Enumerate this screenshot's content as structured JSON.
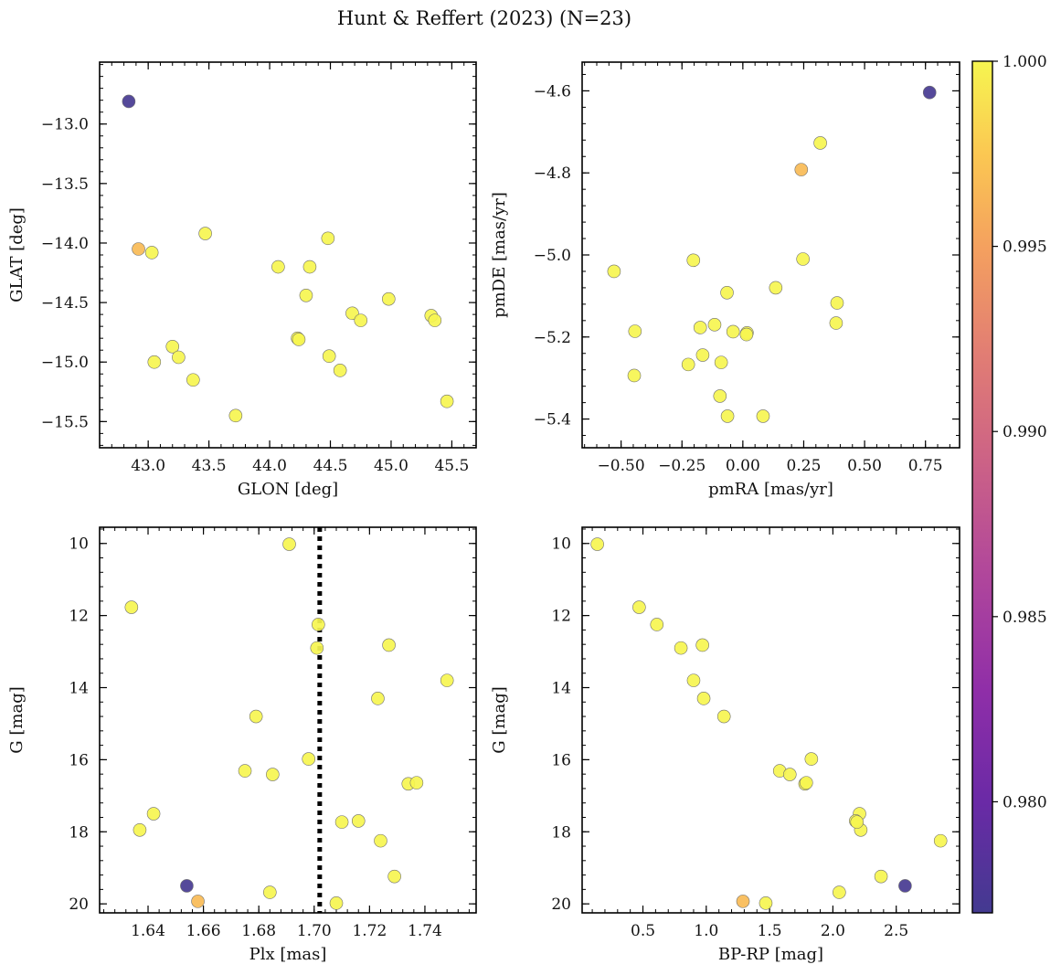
{
  "title": "Hunt & Reffert (2023) (N=23)",
  "colorbar": {
    "min": 0.977,
    "max": 1.0,
    "ticks": [
      "0.980",
      "0.985",
      "0.990",
      "0.995",
      "1.000"
    ],
    "tick_values": [
      0.98,
      0.985,
      0.99,
      0.995,
      1.0
    ],
    "colormap": "plasma"
  },
  "chart_data": [
    {
      "type": "scatter",
      "id": "sky",
      "xlabel": "GLON [deg]",
      "ylabel": "GLAT [deg]",
      "xlim": [
        42.6,
        45.7
      ],
      "ylim": [
        -15.72,
        -12.48
      ],
      "xticks": [
        43.0,
        43.5,
        44.0,
        44.5,
        45.0,
        45.5
      ],
      "xticklabels": [
        "43.0",
        "43.5",
        "44.0",
        "44.5",
        "45.0",
        "45.5"
      ],
      "yticks": [
        -13.0,
        -13.5,
        -14.0,
        -14.5,
        -15.0,
        -15.5
      ],
      "yticklabels": [
        "−13.0",
        "−13.5",
        "−14.0",
        "−14.5",
        "−15.0",
        "−15.5"
      ],
      "x": [
        42.84,
        42.92,
        43.03,
        43.05,
        43.47,
        43.2,
        43.25,
        43.37,
        43.72,
        44.07,
        44.23,
        44.24,
        44.3,
        44.33,
        44.48,
        44.49,
        44.58,
        44.68,
        44.75,
        44.98,
        45.33,
        45.36,
        45.46
      ],
      "y": [
        -12.81,
        -14.05,
        -14.08,
        -15.0,
        -13.92,
        -14.87,
        -14.96,
        -15.15,
        -15.45,
        -14.2,
        -14.8,
        -14.81,
        -14.44,
        -14.2,
        -13.96,
        -14.95,
        -15.07,
        -14.59,
        -14.65,
        -14.47,
        -14.61,
        -14.65,
        -15.33
      ]
    },
    {
      "type": "scatter",
      "id": "pm",
      "xlabel": "pmRA [mas/yr]",
      "ylabel": "pmDE [mas/yr]",
      "xlim": [
        -0.66,
        0.89
      ],
      "ylim": [
        -5.47,
        -4.53
      ],
      "xticks": [
        -0.5,
        -0.25,
        0.0,
        0.25,
        0.5,
        0.75
      ],
      "xticklabels": [
        "−0.50",
        "−0.25",
        "0.00",
        "0.25",
        "0.50",
        "0.75"
      ],
      "yticks": [
        -4.6,
        -4.8,
        -5.0,
        -5.2,
        -5.4
      ],
      "yticklabels": [
        "−4.6",
        "−4.8",
        "−5.0",
        "−5.2",
        "−5.4"
      ],
      "x": [
        0.767,
        0.24,
        -0.529,
        -0.203,
        -0.443,
        -0.175,
        -0.116,
        -0.165,
        -0.446,
        -0.224,
        -0.089,
        -0.094,
        -0.065,
        -0.063,
        -0.04,
        0.017,
        0.015,
        0.135,
        0.247,
        0.387,
        0.383,
        0.318,
        0.083
      ],
      "y": [
        -4.604,
        -4.792,
        -5.04,
        -5.013,
        -5.186,
        -5.177,
        -5.17,
        -5.244,
        -5.294,
        -5.267,
        -5.262,
        -5.344,
        -5.092,
        -5.393,
        -5.187,
        -5.19,
        -5.194,
        -5.08,
        -5.01,
        -5.117,
        -5.166,
        -4.727,
        -5.393
      ]
    },
    {
      "type": "scatter",
      "id": "plx",
      "xlabel": "Plx [mas]",
      "ylabel": "G [mag]",
      "xlim": [
        1.6225,
        1.7585
      ],
      "ylim": [
        20.25,
        9.55
      ],
      "xticks": [
        1.64,
        1.66,
        1.68,
        1.7,
        1.72,
        1.74
      ],
      "xticklabels": [
        "1.64",
        "1.66",
        "1.68",
        "1.70",
        "1.72",
        "1.74"
      ],
      "yticks": [
        10,
        12,
        14,
        16,
        18,
        20
      ],
      "yticklabels": [
        "10",
        "12",
        "14",
        "16",
        "18",
        "20"
      ],
      "vline": 1.702,
      "x": [
        1.654,
        1.658,
        1.634,
        1.691,
        1.7015,
        1.701,
        1.727,
        1.748,
        1.723,
        1.679,
        1.675,
        1.685,
        1.698,
        1.734,
        1.737,
        1.642,
        1.637,
        1.716,
        1.71,
        1.724,
        1.729,
        1.684,
        1.708
      ],
      "y": [
        19.5,
        19.93,
        11.77,
        10.02,
        12.25,
        12.9,
        12.82,
        13.8,
        14.3,
        14.8,
        16.31,
        16.41,
        15.98,
        16.67,
        16.64,
        17.5,
        17.95,
        17.7,
        17.73,
        18.25,
        19.24,
        19.68,
        19.98
      ]
    },
    {
      "type": "scatter",
      "id": "cmd",
      "xlabel": "BP-RP [mag]",
      "ylabel": "G [mag]",
      "xlim": [
        0.02,
        3.0
      ],
      "ylim": [
        20.25,
        9.55
      ],
      "xticks": [
        0.5,
        1.0,
        1.5,
        2.0,
        2.5
      ],
      "xticklabels": [
        "0.5",
        "1.0",
        "1.5",
        "2.0",
        "2.5"
      ],
      "yticks": [
        10,
        12,
        14,
        16,
        18,
        20
      ],
      "yticklabels": [
        "10",
        "12",
        "14",
        "16",
        "18",
        "20"
      ],
      "x": [
        2.57,
        1.29,
        0.47,
        0.14,
        0.61,
        0.8,
        0.97,
        0.9,
        0.98,
        1.14,
        1.58,
        1.66,
        1.83,
        1.78,
        1.79,
        2.21,
        2.22,
        2.18,
        2.19,
        2.85,
        2.38,
        2.05,
        1.47
      ],
      "y": [
        19.5,
        19.93,
        11.77,
        10.02,
        12.25,
        12.9,
        12.82,
        13.8,
        14.3,
        14.8,
        16.31,
        16.41,
        15.98,
        16.67,
        16.64,
        17.5,
        17.95,
        17.7,
        17.73,
        18.25,
        19.24,
        19.68,
        19.98
      ]
    }
  ],
  "probability": [
    0.9772,
    0.9967,
    1.0,
    1.0,
    1.0,
    1.0,
    1.0,
    1.0,
    1.0,
    1.0,
    1.0,
    1.0,
    1.0,
    1.0,
    1.0,
    1.0,
    1.0,
    1.0,
    1.0,
    1.0,
    1.0,
    1.0,
    1.0
  ]
}
